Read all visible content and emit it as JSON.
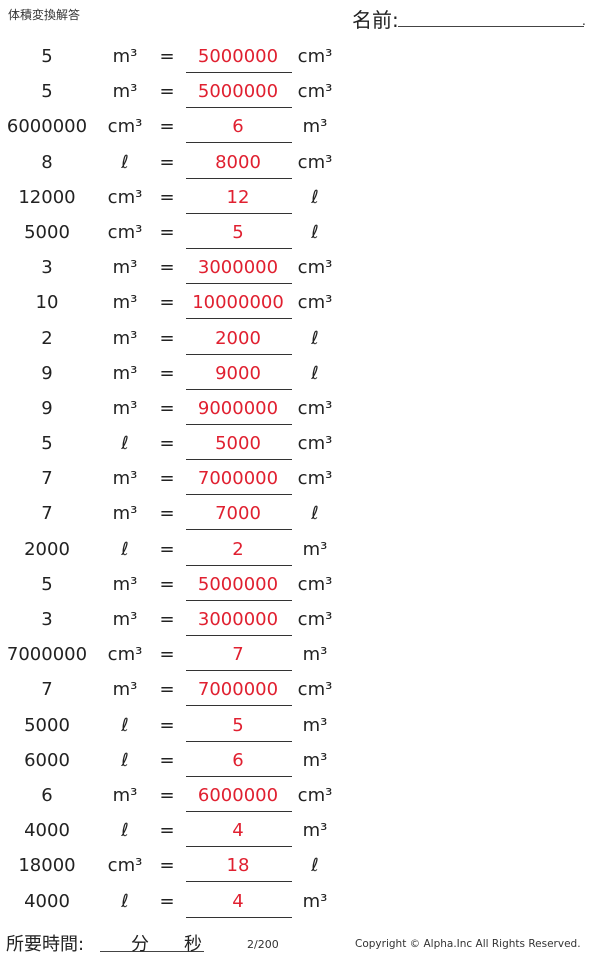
{
  "header": {
    "title": "体積変換解答",
    "name_label": "名前:",
    "name_end": "."
  },
  "problems": [
    {
      "value": "5",
      "unit": "m³",
      "answer": "5000000",
      "answer_unit": "cm³"
    },
    {
      "value": "5",
      "unit": "m³",
      "answer": "5000000",
      "answer_unit": "cm³"
    },
    {
      "value": "6000000",
      "unit": "cm³",
      "answer": "6",
      "answer_unit": "m³"
    },
    {
      "value": "8",
      "unit": "ℓ",
      "answer": "8000",
      "answer_unit": "cm³"
    },
    {
      "value": "12000",
      "unit": "cm³",
      "answer": "12",
      "answer_unit": "ℓ"
    },
    {
      "value": "5000",
      "unit": "cm³",
      "answer": "5",
      "answer_unit": "ℓ"
    },
    {
      "value": "3",
      "unit": "m³",
      "answer": "3000000",
      "answer_unit": "cm³"
    },
    {
      "value": "10",
      "unit": "m³",
      "answer": "10000000",
      "answer_unit": "cm³"
    },
    {
      "value": "2",
      "unit": "m³",
      "answer": "2000",
      "answer_unit": "ℓ"
    },
    {
      "value": "9",
      "unit": "m³",
      "answer": "9000",
      "answer_unit": "ℓ"
    },
    {
      "value": "9",
      "unit": "m³",
      "answer": "9000000",
      "answer_unit": "cm³"
    },
    {
      "value": "5",
      "unit": "ℓ",
      "answer": "5000",
      "answer_unit": "cm³"
    },
    {
      "value": "7",
      "unit": "m³",
      "answer": "7000000",
      "answer_unit": "cm³"
    },
    {
      "value": "7",
      "unit": "m³",
      "answer": "7000",
      "answer_unit": "ℓ"
    },
    {
      "value": "2000",
      "unit": "ℓ",
      "answer": "2",
      "answer_unit": "m³"
    },
    {
      "value": "5",
      "unit": "m³",
      "answer": "5000000",
      "answer_unit": "cm³"
    },
    {
      "value": "3",
      "unit": "m³",
      "answer": "3000000",
      "answer_unit": "cm³"
    },
    {
      "value": "7000000",
      "unit": "cm³",
      "answer": "7",
      "answer_unit": "m³"
    },
    {
      "value": "7",
      "unit": "m³",
      "answer": "7000000",
      "answer_unit": "cm³"
    },
    {
      "value": "5000",
      "unit": "ℓ",
      "answer": "5",
      "answer_unit": "m³"
    },
    {
      "value": "6000",
      "unit": "ℓ",
      "answer": "6",
      "answer_unit": "m³"
    },
    {
      "value": "6",
      "unit": "m³",
      "answer": "6000000",
      "answer_unit": "cm³"
    },
    {
      "value": "4000",
      "unit": "ℓ",
      "answer": "4",
      "answer_unit": "m³"
    },
    {
      "value": "18000",
      "unit": "cm³",
      "answer": "18",
      "answer_unit": "ℓ"
    },
    {
      "value": "4000",
      "unit": "ℓ",
      "answer": "4",
      "answer_unit": "m³"
    }
  ],
  "equals": "=",
  "footer": {
    "time_label": "所要時間:",
    "minutes_label": "分",
    "seconds_label": "秒",
    "page": "2/200",
    "copyright": "Copyright © Alpha.Inc All Rights Reserved."
  }
}
